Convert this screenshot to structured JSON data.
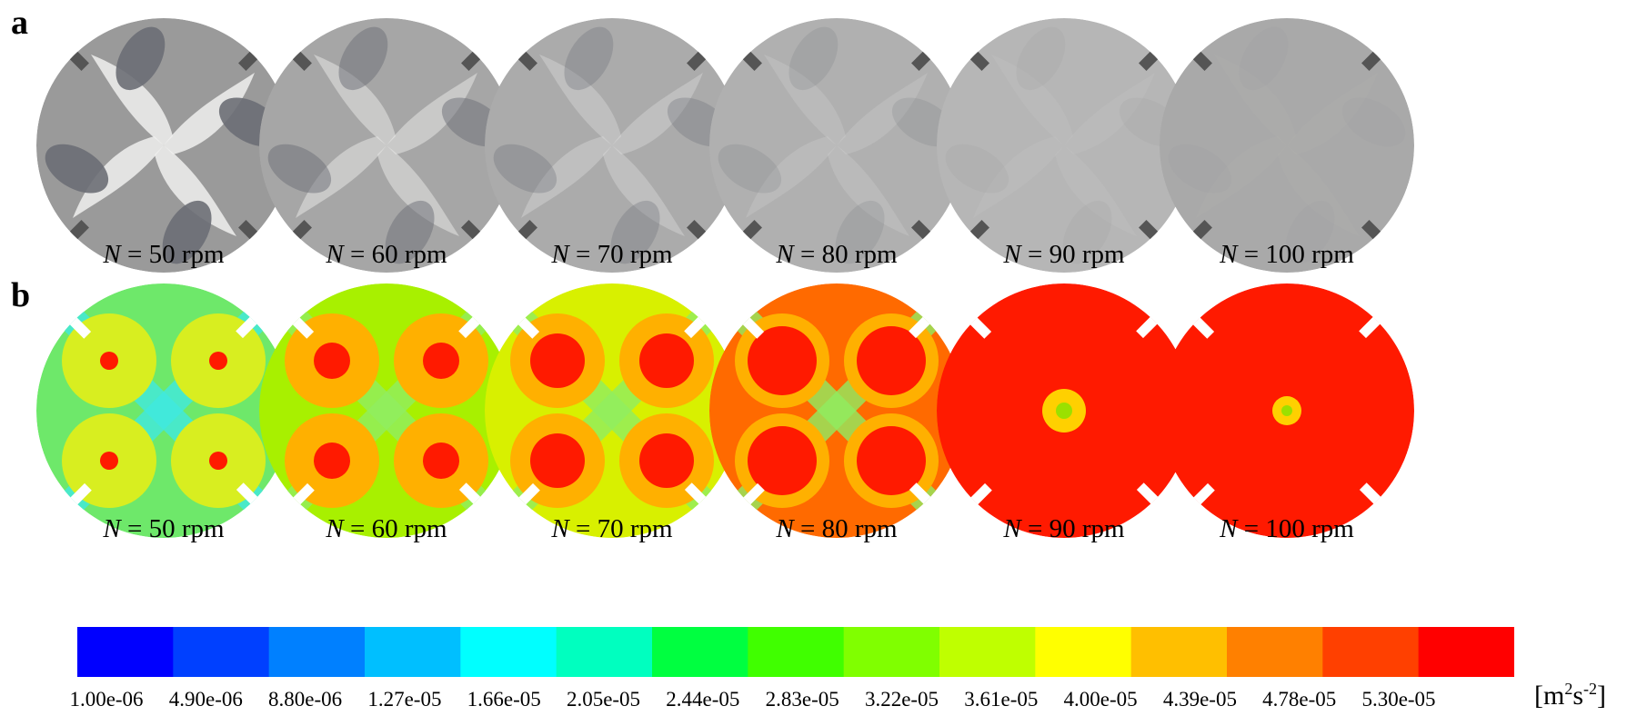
{
  "panel_labels": {
    "a": "a",
    "b": "b"
  },
  "row_a": {
    "captions": [
      {
        "var": "N",
        "text": " = 50 rpm"
      },
      {
        "var": "N",
        "text": " = 60 rpm"
      },
      {
        "var": "N",
        "text": " = 70 rpm"
      },
      {
        "var": "N",
        "text": " = 80 rpm"
      },
      {
        "var": "N",
        "text": " = 90 rpm"
      },
      {
        "var": "N",
        "text": " = 100 rpm"
      }
    ]
  },
  "row_b": {
    "captions": [
      {
        "var": "N",
        "text": " = 50 rpm"
      },
      {
        "var": "N",
        "text": " = 60 rpm"
      },
      {
        "var": "N",
        "text": " = 70 rpm"
      },
      {
        "var": "N",
        "text": " = 80 rpm"
      },
      {
        "var": "N",
        "text": " = 90 rpm"
      },
      {
        "var": "N",
        "text": " = 100 rpm"
      }
    ]
  },
  "colorbar": {
    "ticks": [
      "1.00e-06",
      "4.90e-06",
      "8.80e-06",
      "1.27e-05",
      "1.66e-05",
      "2.05e-05",
      "2.44e-05",
      "2.83e-05",
      "3.22e-05",
      "3.61e-05",
      "4.00e-05",
      "4.39e-05",
      "4.78e-05",
      "5.30e-05"
    ],
    "unit_prefix": "[m",
    "unit_sup1": "2",
    "unit_mid": "s",
    "unit_sup2": "-2",
    "unit_suffix": "]",
    "colors": [
      "#0000ff",
      "#0040ff",
      "#0080ff",
      "#00bfff",
      "#00ffff",
      "#00ffbf",
      "#00ff40",
      "#40ff00",
      "#80ff00",
      "#bfff00",
      "#ffff00",
      "#ffbf00",
      "#ff8000",
      "#ff4000",
      "#ff0000"
    ]
  }
}
